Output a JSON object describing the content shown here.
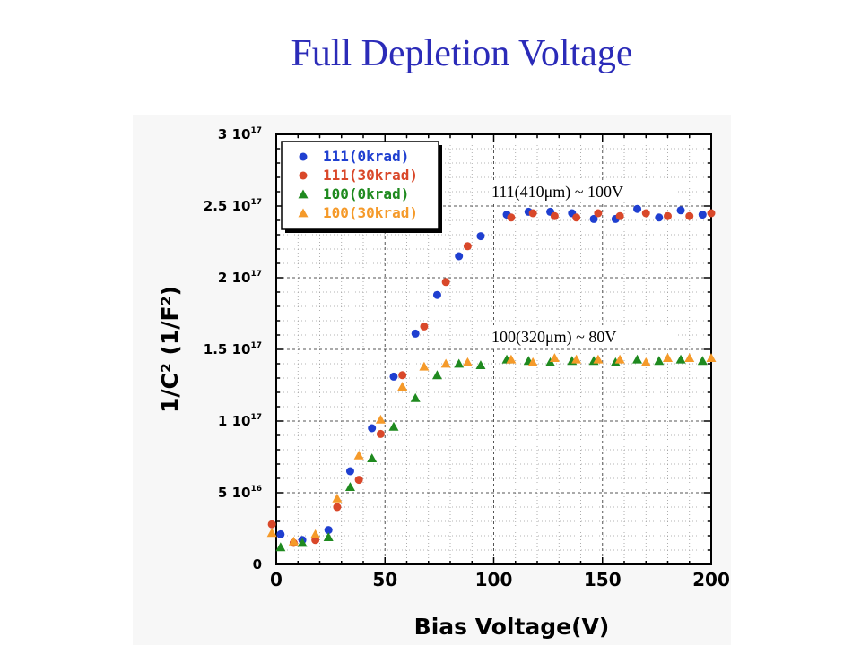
{
  "slide": {
    "title": "Full Depletion Voltage"
  },
  "chart_data": {
    "type": "scatter",
    "xlabel": "Bias Voltage(V)",
    "ylabel": "1/C² (1/F²)",
    "xlim": [
      0,
      200
    ],
    "ylim": [
      0,
      3e+17
    ],
    "grid": true,
    "legend_position": "top-left",
    "x_ticks": [
      "0",
      "50",
      "100",
      "150",
      "200"
    ],
    "y_ticks": [
      {
        "value": 0,
        "mantissa": "0",
        "base": "",
        "exp": ""
      },
      {
        "value": 5e+16,
        "mantissa": "5",
        "base": "10",
        "exp": "16"
      },
      {
        "value": 1e+17,
        "mantissa": "1",
        "base": "10",
        "exp": "17"
      },
      {
        "value": 1.5e+17,
        "mantissa": "1.5",
        "base": "10",
        "exp": "17"
      },
      {
        "value": 2e+17,
        "mantissa": "2",
        "base": "10",
        "exp": "17"
      },
      {
        "value": 2.5e+17,
        "mantissa": "2.5",
        "base": "10",
        "exp": "17"
      },
      {
        "value": 3e+17,
        "mantissa": "3",
        "base": "10",
        "exp": "17"
      }
    ],
    "series": [
      {
        "name": "111(0krad)",
        "marker": "circle",
        "color": "#1f3fd0",
        "x": [
          2,
          12,
          24,
          34,
          44,
          54,
          64,
          74,
          84,
          94,
          106,
          116,
          126,
          136,
          146,
          156,
          166,
          176,
          186,
          196
        ],
        "y": [
          2.1e+16,
          1.7e+16,
          2.4e+16,
          6.5e+16,
          9.5e+16,
          1.31e+17,
          1.61e+17,
          1.88e+17,
          2.15e+17,
          2.29e+17,
          2.44e+17,
          2.46e+17,
          2.46e+17,
          2.45e+17,
          2.41e+17,
          2.41e+17,
          2.48e+17,
          2.42e+17,
          2.47e+17,
          2.44e+17
        ]
      },
      {
        "name": "111(30krad)",
        "marker": "circle",
        "color": "#d9482a",
        "x": [
          -2,
          8,
          18,
          28,
          38,
          48,
          58,
          68,
          78,
          88,
          108,
          118,
          128,
          138,
          148,
          158,
          170,
          180,
          190,
          200
        ],
        "y": [
          2.8e+16,
          1.5e+16,
          1.7e+16,
          4e+16,
          5.9e+16,
          9.1e+16,
          1.32e+17,
          1.66e+17,
          1.97e+17,
          2.22e+17,
          2.42e+17,
          2.45e+17,
          2.43e+17,
          2.42e+17,
          2.45e+17,
          2.43e+17,
          2.45e+17,
          2.43e+17,
          2.43e+17,
          2.45e+17
        ]
      },
      {
        "name": "100(0krad)",
        "marker": "triangle",
        "color": "#1f8a1f",
        "x": [
          2,
          12,
          24,
          34,
          44,
          54,
          64,
          74,
          84,
          94,
          106,
          116,
          126,
          136,
          146,
          156,
          166,
          176,
          186,
          196
        ],
        "y": [
          1.2e+16,
          1.5e+16,
          1.9e+16,
          5.4e+16,
          7.4e+16,
          9.6e+16,
          1.16e+17,
          1.32e+17,
          1.4e+17,
          1.39e+17,
          1.43e+17,
          1.42e+17,
          1.41e+17,
          1.42e+17,
          1.42e+17,
          1.41e+17,
          1.43e+17,
          1.42e+17,
          1.43e+17,
          1.42e+17
        ]
      },
      {
        "name": "100(30krad)",
        "marker": "triangle",
        "color": "#f59a2a",
        "x": [
          -2,
          8,
          18,
          28,
          38,
          48,
          58,
          68,
          78,
          88,
          108,
          118,
          128,
          138,
          148,
          158,
          170,
          180,
          190,
          200
        ],
        "y": [
          2.2e+16,
          1.6e+16,
          2.1e+16,
          4.6e+16,
          7.6e+16,
          1.01e+17,
          1.24e+17,
          1.38e+17,
          1.4e+17,
          1.41e+17,
          1.43e+17,
          1.41e+17,
          1.44e+17,
          1.43e+17,
          1.43e+17,
          1.43e+17,
          1.41e+17,
          1.44e+17,
          1.44e+17,
          1.44e+17
        ]
      }
    ],
    "annotations": [
      {
        "text": "111(410μm)  ~ 100V",
        "anchor_x": 100,
        "anchor_y": 2.6e+17
      },
      {
        "text": "100(320μm)  ~ 80V",
        "anchor_x": 100,
        "anchor_y": 1.58e+17
      }
    ]
  }
}
